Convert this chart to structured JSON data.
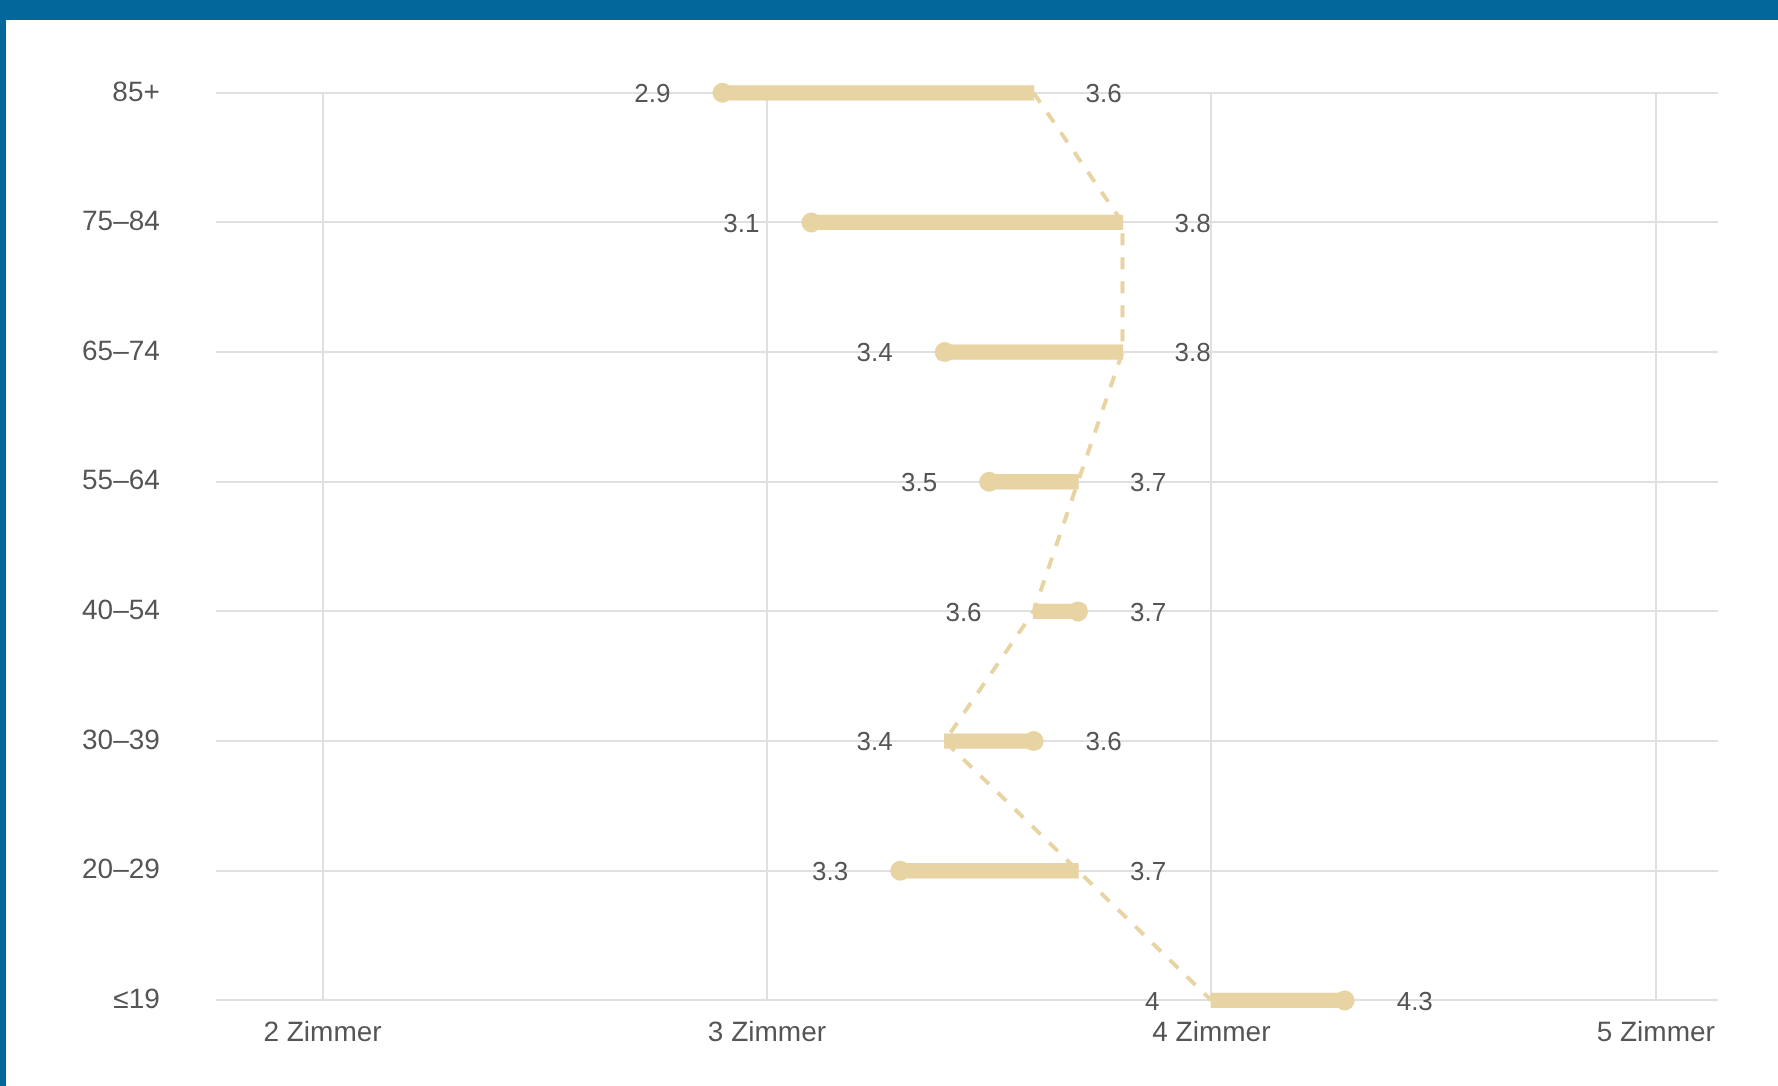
{
  "chart_data": {
    "type": "bar",
    "orientation": "horizontal",
    "categories": [
      "85+",
      "75–84",
      "65–74",
      "55–64",
      "40–54",
      "30–39",
      "20–29",
      "≤19"
    ],
    "base": [
      3.6,
      3.8,
      3.8,
      3.7,
      3.6,
      3.4,
      3.7,
      4
    ],
    "values": [
      -0.7,
      -0.7,
      -0.4,
      -0.2,
      0.1,
      0.2,
      -0.4,
      0.3
    ],
    "color": "#e8d3a2",
    "series": [
      {
        "type": "line",
        "color": "#e8d3a2",
        "line_style": "dashed",
        "marker": "none",
        "values": [
          3.6,
          3.8,
          3.8,
          3.7,
          3.6,
          3.4,
          3.7,
          4
        ]
      },
      {
        "type": "scatter",
        "color": "#e8d3a2",
        "marker": "circle",
        "values": [
          2.9,
          3.1,
          3.4,
          3.5,
          3.7,
          3.6,
          3.3,
          4.3
        ]
      }
    ],
    "xlim": [
      1.76,
      5.14
    ],
    "xticks": [
      {
        "value": 2,
        "label": "2 Zimmer"
      },
      {
        "value": 3,
        "label": "3 Zimmer"
      },
      {
        "value": 4,
        "label": "4 Zimmer"
      },
      {
        "value": 5,
        "label": "5 Zimmer"
      }
    ],
    "grid": true,
    "legend": false,
    "annotations": [
      {
        "text": "2.9",
        "x": 2.9,
        "y": "85+"
      },
      {
        "text": "3.6",
        "x": 3.6,
        "y": "85+"
      },
      {
        "text": "3.1",
        "x": 3.1,
        "y": "75–84"
      },
      {
        "text": "3.8",
        "x": 3.8,
        "y": "75–84"
      },
      {
        "text": "3.4",
        "x": 3.4,
        "y": "65–74"
      },
      {
        "text": "3.8",
        "x": 3.8,
        "y": "65–74"
      },
      {
        "text": "3.5",
        "x": 3.5,
        "y": "55–64"
      },
      {
        "text": "3.7",
        "x": 3.7,
        "y": "55–64"
      },
      {
        "text": "3.6",
        "x": 3.6,
        "y": "40–54"
      },
      {
        "text": "3.7",
        "x": 3.7,
        "y": "40–54"
      },
      {
        "text": "3.4",
        "x": 3.4,
        "y": "30–39"
      },
      {
        "text": "3.6",
        "x": 3.6,
        "y": "30–39"
      },
      {
        "text": "3.3",
        "x": 3.3,
        "y": "20–29"
      },
      {
        "text": "3.7",
        "x": 3.7,
        "y": "20–29"
      },
      {
        "text": "4",
        "x": 4,
        "y": "≤19"
      },
      {
        "text": "4.3",
        "x": 4.3,
        "y": "≤19"
      }
    ]
  }
}
